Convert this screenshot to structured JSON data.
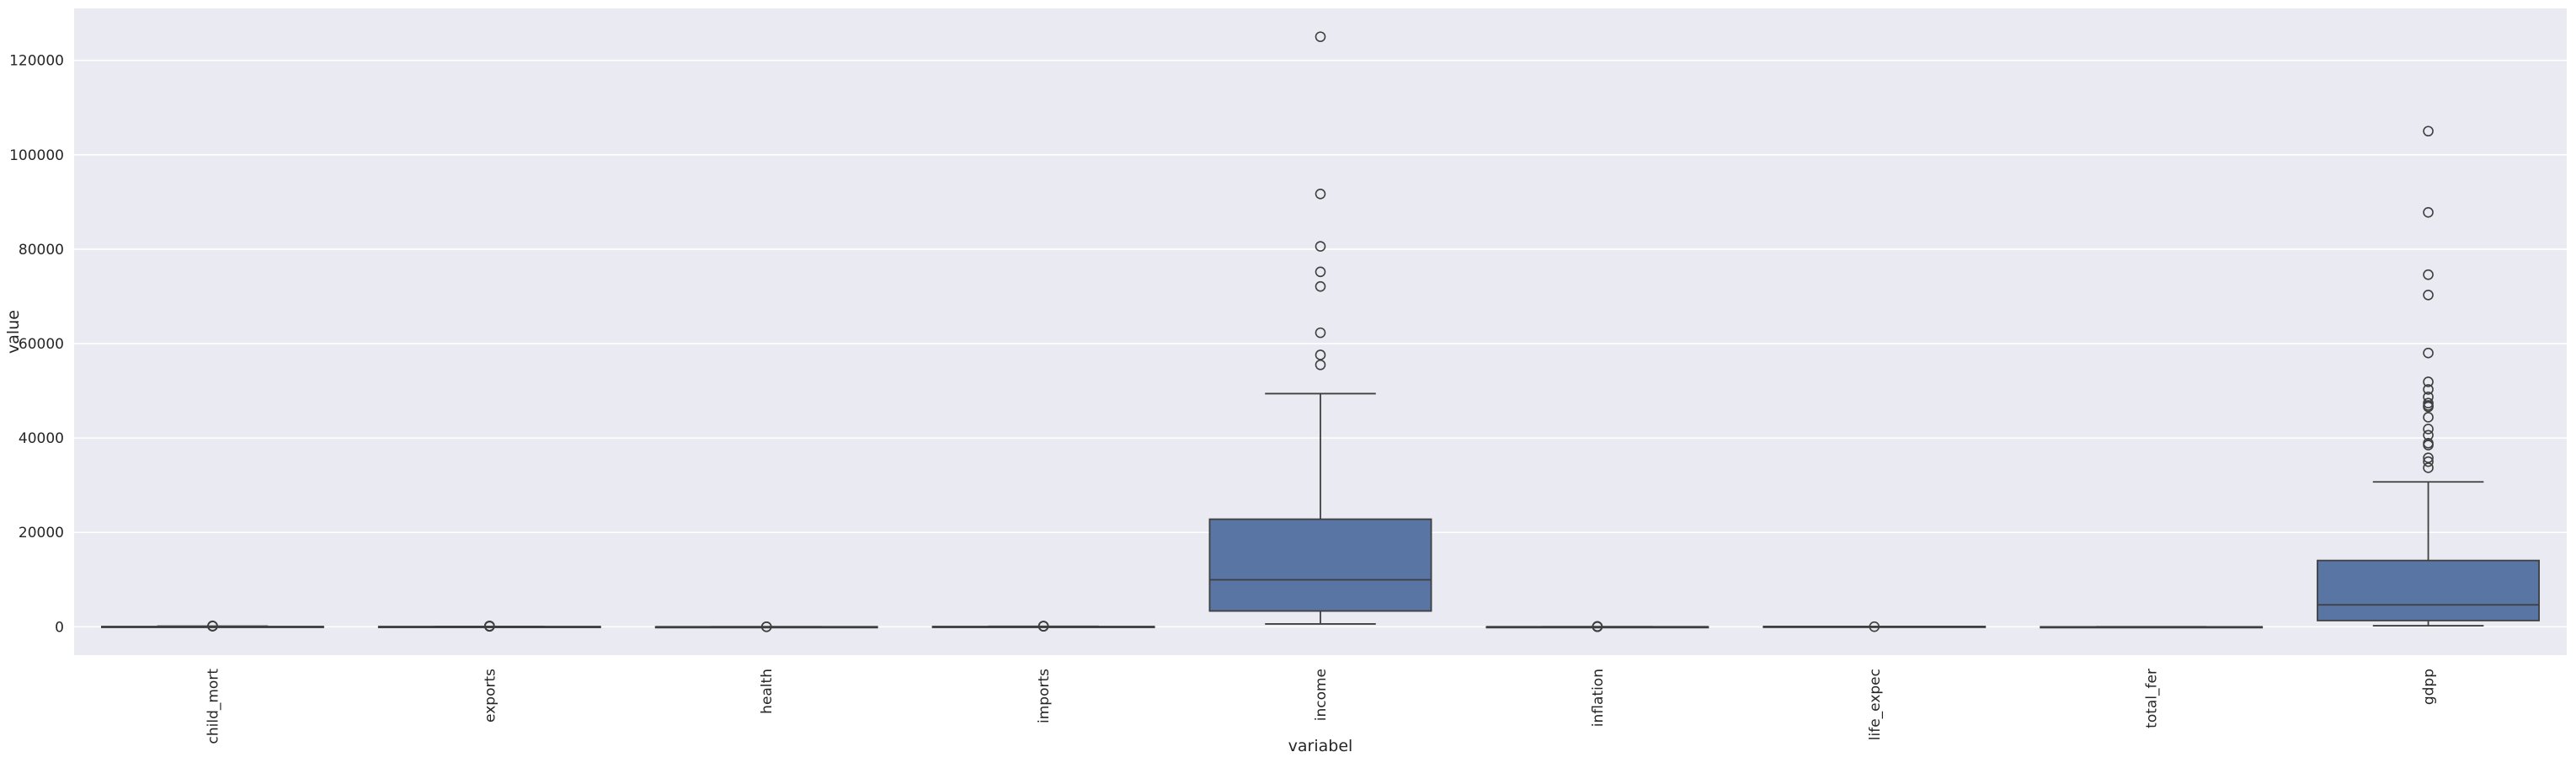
{
  "chart_data": {
    "type": "box",
    "xlabel": "variabel",
    "ylabel": "value",
    "ylim": [
      -6000,
      131000
    ],
    "yticks": [
      0,
      20000,
      40000,
      60000,
      80000,
      100000,
      120000
    ],
    "ytick_labels": [
      "0",
      "20000",
      "40000",
      "60000",
      "80000",
      "100000",
      "120000"
    ],
    "grid": true,
    "box_color": "#5975a4",
    "background_color": "#eaeaf2",
    "categories": [
      "child_mort",
      "exports",
      "health",
      "imports",
      "income",
      "inflation",
      "life_expec",
      "total_fer",
      "gdpp"
    ],
    "boxes": [
      {
        "category": "child_mort",
        "whislo": 2.6,
        "q1": 8.3,
        "med": 19.3,
        "q3": 62.1,
        "whishi": 142,
        "fliers": [
          149,
          150,
          160,
          208
        ]
      },
      {
        "category": "exports",
        "whislo": 0.1,
        "q1": 23.8,
        "med": 35,
        "q3": 51.4,
        "whishi": 93.8,
        "fliers": [
          103,
          108,
          153,
          175,
          200
        ]
      },
      {
        "category": "health",
        "whislo": 1.8,
        "q1": 4.9,
        "med": 6.3,
        "q3": 8.6,
        "whishi": 13.1,
        "fliers": [
          14.2,
          17.9
        ]
      },
      {
        "category": "imports",
        "whislo": 0.07,
        "q1": 30.2,
        "med": 43.3,
        "q3": 58.8,
        "whishi": 101,
        "fliers": [
          108,
          142,
          154,
          174
        ]
      },
      {
        "category": "income",
        "whislo": 609,
        "q1": 3355,
        "med": 9960,
        "q3": 22800,
        "whishi": 49400,
        "fliers": [
          55500,
          57600,
          62300,
          72100,
          75200,
          80600,
          91700,
          125000
        ]
      },
      {
        "category": "inflation",
        "whislo": -4.2,
        "q1": 1.8,
        "med": 5.4,
        "q3": 10.8,
        "whishi": 24.9,
        "fliers": [
          26.5,
          39.2,
          41.5,
          45.9,
          104
        ]
      },
      {
        "category": "life_expec",
        "whislo": 47.5,
        "q1": 65.3,
        "med": 73.1,
        "q3": 76.8,
        "whishi": 82.8,
        "fliers": [
          32.1
        ]
      },
      {
        "category": "total_fer",
        "whislo": 1.15,
        "q1": 1.79,
        "med": 2.41,
        "q3": 3.88,
        "whishi": 7.49,
        "fliers": []
      },
      {
        "category": "gdpp",
        "whislo": 231,
        "q1": 1330,
        "med": 4660,
        "q3": 14050,
        "whishi": 30700,
        "fliers": [
          33700,
          35000,
          35800,
          38500,
          38900,
          40600,
          41900,
          44400,
          46600,
          46900,
          47400,
          48700,
          50300,
          51900,
          58000,
          70300,
          74600,
          87800,
          105000
        ]
      }
    ]
  }
}
